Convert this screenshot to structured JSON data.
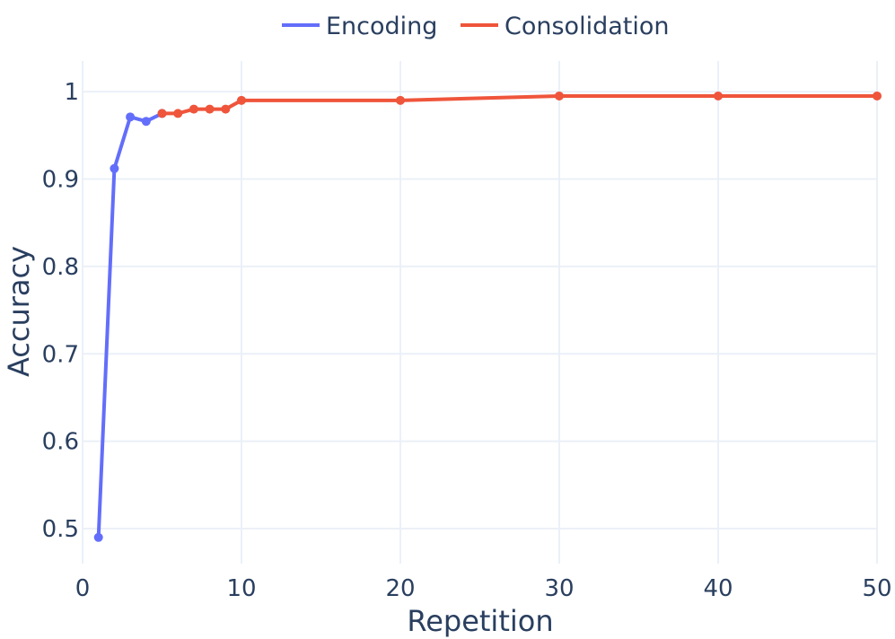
{
  "chart_data": {
    "type": "line",
    "xlabel": "Repetition",
    "ylabel": "Accuracy",
    "xlim": [
      0,
      50
    ],
    "ylim": [
      0.46,
      1.035
    ],
    "xticks": [
      0,
      10,
      20,
      30,
      40,
      50
    ],
    "yticks": [
      0.5,
      0.6,
      0.7,
      0.8,
      0.9,
      1
    ],
    "ytick_labels": [
      "0.5",
      "0.6",
      "0.7",
      "0.8",
      "0.9",
      "1"
    ],
    "grid": true,
    "legend_position": "top-center",
    "series": [
      {
        "name": "Encoding",
        "color": "#636efa",
        "x": [
          1,
          2,
          3,
          4,
          5
        ],
        "y": [
          0.49,
          0.912,
          0.971,
          0.966,
          0.975
        ]
      },
      {
        "name": "Consolidation",
        "color": "#ef553b",
        "x": [
          5,
          6,
          7,
          8,
          9,
          10,
          20,
          30,
          40,
          50
        ],
        "y": [
          0.975,
          0.975,
          0.98,
          0.98,
          0.98,
          0.99,
          0.99,
          0.995,
          0.995,
          0.995
        ]
      }
    ]
  }
}
